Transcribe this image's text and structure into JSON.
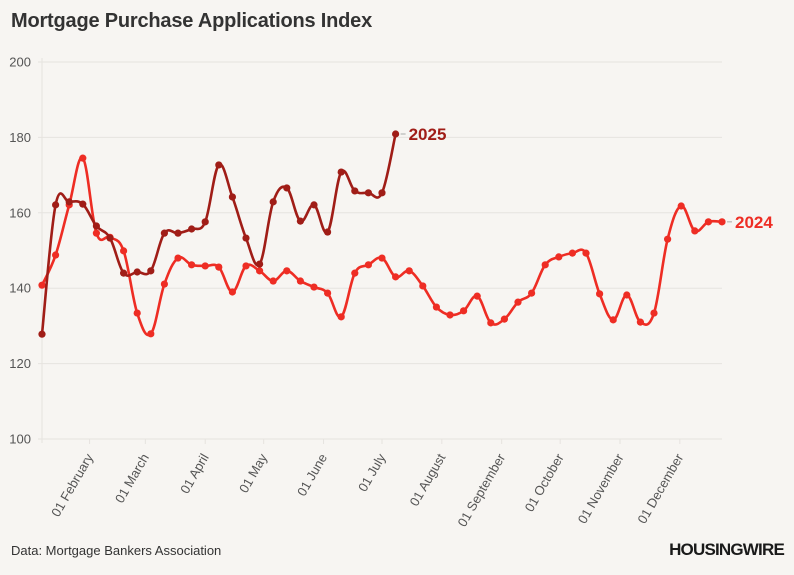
{
  "title": "Mortgage Purchase Applications Index",
  "source": "Data: Mortgage Bankers Association",
  "logo": "HOUSINGWIRE",
  "colors": {
    "2024": "#ee2d24",
    "2025": "#a01d17",
    "grid": "#e6e3df",
    "text": "#555555"
  },
  "chart_data": {
    "type": "line",
    "title": "Mortgage Purchase Applications Index",
    "xlabel": "",
    "ylabel": "",
    "ylim": [
      100,
      200
    ],
    "yticks": [
      100,
      120,
      140,
      160,
      180,
      200
    ],
    "grid": true,
    "legend": "inline-end-labels",
    "x_unit": "week of year (weekly observations, week 1 = early January)",
    "xticks": [
      {
        "label": "01 February",
        "week": 4.5
      },
      {
        "label": "01 March",
        "week": 8.6
      },
      {
        "label": "01 April",
        "week": 13.0
      },
      {
        "label": "01 May",
        "week": 17.3
      },
      {
        "label": "01 June",
        "week": 21.7
      },
      {
        "label": "01 July",
        "week": 26.0
      },
      {
        "label": "01 August",
        "week": 30.4
      },
      {
        "label": "01 September",
        "week": 34.8
      },
      {
        "label": "01 October",
        "week": 39.1
      },
      {
        "label": "01 November",
        "week": 43.5
      },
      {
        "label": "01 December",
        "week": 47.9
      }
    ],
    "x_range": [
      1,
      51.5
    ],
    "series": [
      {
        "name": "2024",
        "values": [
          140.8,
          148.8,
          162.1,
          174.5,
          154.6,
          153.5,
          149.9,
          133.4,
          127.9,
          141.1,
          148.0,
          146.2,
          145.9,
          145.6,
          139.0,
          145.9,
          144.6,
          141.9,
          144.6,
          141.9,
          140.3,
          138.7,
          132.4,
          144.0,
          146.2,
          148.0,
          143.0,
          144.6,
          140.6,
          135.0,
          132.9,
          134.0,
          137.9,
          130.8,
          131.8,
          136.3,
          138.7,
          146.2,
          148.3,
          149.3,
          149.3,
          138.5,
          131.6,
          138.2,
          131.0,
          133.4,
          153.0,
          161.8,
          155.2,
          157.6,
          157.6
        ]
      },
      {
        "name": "2025",
        "values": [
          127.8,
          162.1,
          162.9,
          162.3,
          156.5,
          153.3,
          144.0,
          144.3,
          144.6,
          154.6,
          154.6,
          155.7,
          157.6,
          172.7,
          164.2,
          153.3,
          146.4,
          162.9,
          166.6,
          157.8,
          162.1,
          154.9,
          170.8,
          165.8,
          165.3,
          165.3,
          180.9
        ]
      }
    ]
  }
}
